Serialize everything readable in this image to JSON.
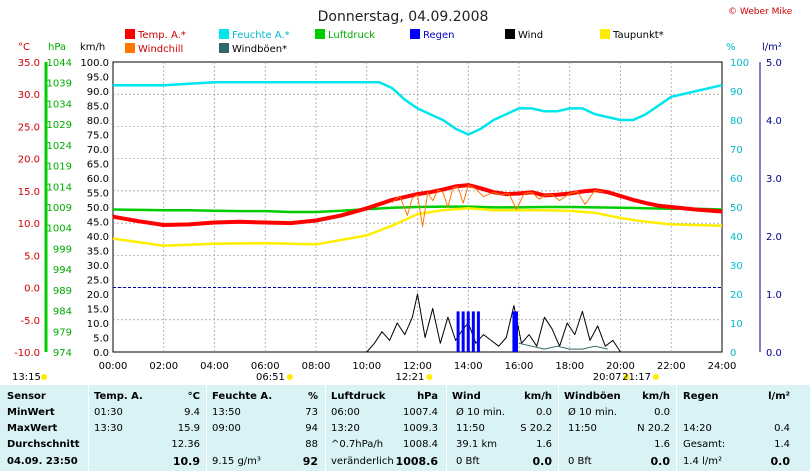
{
  "title": "Donnerstag, 04.09.2008",
  "credit": "© Weber Mike",
  "legend": [
    {
      "label": "Temp. A.*",
      "color": "#ff0000"
    },
    {
      "label": "Feuchte A.*",
      "color": "#00e5ee"
    },
    {
      "label": "Luftdruck",
      "color": "#00cc00"
    },
    {
      "label": "Regen",
      "color": "#0000ff"
    },
    {
      "label": "Wind",
      "color": "#000000"
    },
    {
      "label": "Taupunkt*",
      "color": "#ffee00"
    },
    {
      "label": "Windchill",
      "color": "#ff7700"
    },
    {
      "label": "Windböen*",
      "color": "#336666"
    }
  ],
  "axes_units": {
    "temp": "°C",
    "press": "hPa",
    "wind": "km/h",
    "hum": "%",
    "rain": "l/m²"
  },
  "chart_data": {
    "type": "line",
    "x_ticks": [
      "00:00",
      "02:00",
      "04:00",
      "06:00",
      "08:00",
      "10:00",
      "12:00",
      "14:00",
      "16:00",
      "18:00",
      "20:00",
      "22:00",
      "24:00"
    ],
    "temp_ticks": [
      "35.0",
      "30.0",
      "25.0",
      "20.0",
      "15.0",
      "10.0",
      "5.0",
      "0.0",
      "-5.0",
      "-10.0"
    ],
    "press_ticks": [
      "1044",
      "1039",
      "1034",
      "1029",
      "1024",
      "1019",
      "1014",
      "1009",
      "1004",
      "999",
      "994",
      "989",
      "984",
      "979",
      "974"
    ],
    "wind_ticks": [
      "100.0",
      "95.0",
      "90.0",
      "85.0",
      "80.0",
      "75.0",
      "70.0",
      "65.0",
      "60.0",
      "55.0",
      "50.0",
      "45.0",
      "40.0",
      "35.0",
      "30.0",
      "25.0",
      "20.0",
      "15.0",
      "10.0",
      "5.0",
      "0.0"
    ],
    "hum_ticks": [
      "100",
      "90",
      "80",
      "70",
      "60",
      "50",
      "40",
      "30",
      "20",
      "10",
      "0"
    ],
    "rain_ticks": [
      "5.0",
      "4.0",
      "3.0",
      "2.0",
      "1.0",
      "0.0"
    ],
    "temp_range": [
      -10,
      35
    ],
    "hum_range": [
      0,
      100
    ],
    "wind_range": [
      0,
      100
    ],
    "series": [
      {
        "name": "Temp. A.*",
        "color": "#ff0000",
        "x": [
          0,
          1,
          2,
          3,
          4,
          5,
          6,
          7,
          8,
          9,
          10,
          11,
          12,
          12.5,
          13,
          13.5,
          14,
          14.5,
          15,
          15.5,
          16,
          16.5,
          17,
          17.5,
          18,
          18.5,
          19,
          19.5,
          20,
          20.5,
          21,
          21.5,
          22,
          23,
          24
        ],
        "y": [
          11,
          10.3,
          9.7,
          9.8,
          10.1,
          10.2,
          10.1,
          10.0,
          10.4,
          11.2,
          12.3,
          13.6,
          14.5,
          14.8,
          15.2,
          15.7,
          15.9,
          15.4,
          14.8,
          14.5,
          14.6,
          14.8,
          14.3,
          14.4,
          14.6,
          14.9,
          15.1,
          14.8,
          14.2,
          13.6,
          13.1,
          12.7,
          12.5,
          12.1,
          11.8
        ]
      },
      {
        "name": "Feuchte A.*",
        "color": "#00e5ee",
        "x": [
          0,
          2,
          4,
          6,
          8,
          10,
          10.5,
          11,
          11.5,
          12,
          12.5,
          13,
          13.5,
          14,
          14.5,
          15,
          15.5,
          16,
          16.5,
          17,
          17.5,
          18,
          18.5,
          19,
          19.5,
          20,
          20.5,
          21,
          21.5,
          22,
          23,
          24
        ],
        "y": [
          92,
          92,
          93,
          93,
          93,
          93,
          93,
          91,
          87,
          84,
          82,
          80,
          77,
          75,
          77,
          80,
          82,
          84,
          84,
          83,
          83,
          84,
          84,
          82,
          81,
          80,
          80,
          82,
          85,
          88,
          90,
          92
        ]
      },
      {
        "name": "Luftdruck",
        "color": "#00cc00",
        "x": [
          0,
          1,
          2,
          3,
          4,
          5,
          6,
          7,
          8,
          9,
          10,
          11,
          12,
          13,
          14,
          15,
          16,
          17,
          18,
          19,
          20,
          21,
          22,
          23,
          24
        ],
        "y": [
          1008.4,
          1008.3,
          1008.2,
          1008.2,
          1008.1,
          1008.0,
          1008.0,
          1007.8,
          1007.8,
          1008.1,
          1008.5,
          1008.8,
          1009.0,
          1009.1,
          1009.1,
          1008.9,
          1008.9,
          1009.0,
          1009.0,
          1008.9,
          1008.8,
          1008.7,
          1008.6,
          1008.6,
          1008.4
        ]
      },
      {
        "name": "Taupunkt*",
        "color": "#ffee00",
        "x": [
          0,
          2,
          4,
          6,
          8,
          10,
          11,
          12,
          13,
          14,
          15,
          16,
          17,
          18,
          19,
          20,
          21,
          22,
          24
        ],
        "y": [
          7.6,
          6.5,
          6.8,
          6.9,
          6.7,
          8.1,
          9.6,
          11.4,
          12.0,
          12.3,
          12.0,
          12.0,
          12.0,
          11.9,
          11.6,
          10.8,
          10.2,
          9.8,
          9.6
        ]
      },
      {
        "name": "Windchill",
        "color": "#ff7700",
        "x": [
          11,
          11.3,
          11.6,
          11.8,
          12,
          12.2,
          12.4,
          12.6,
          12.8,
          13,
          13.2,
          13.4,
          13.6,
          13.8,
          14,
          14.3,
          14.6,
          15,
          15.3,
          15.6,
          15.9,
          16.2,
          16.5,
          16.8,
          17,
          17.3,
          17.6,
          18,
          18.3,
          18.6,
          19,
          19.3
        ],
        "y": [
          13.2,
          14.2,
          11.2,
          13.9,
          14.4,
          9.5,
          14.7,
          13.5,
          15.1,
          14.8,
          12.5,
          15.5,
          15.6,
          13.1,
          15.9,
          15.3,
          14.1,
          14.8,
          14.4,
          14.6,
          12.1,
          14.6,
          14.8,
          13.7,
          14.3,
          14.4,
          13.5,
          14.6,
          14.9,
          12.9,
          15.1,
          14.8
        ]
      },
      {
        "name": "Wind",
        "color": "#000000",
        "x": [
          10,
          10.3,
          10.6,
          10.9,
          11.2,
          11.5,
          11.8,
          12,
          12.3,
          12.6,
          12.9,
          13.2,
          13.5,
          13.8,
          14,
          14.3,
          14.6,
          14.9,
          15.2,
          15.5,
          15.8,
          16.1,
          16.4,
          16.7,
          17,
          17.3,
          17.6,
          17.9,
          18.2,
          18.5,
          18.8,
          19.1,
          19.4,
          19.7,
          20
        ],
        "y": [
          0,
          3,
          7,
          4,
          10,
          6,
          12,
          20,
          5,
          15,
          3,
          12,
          4,
          8,
          10,
          3,
          6,
          4,
          2,
          5,
          16,
          3,
          6,
          2,
          12,
          8,
          2,
          10,
          6,
          14,
          4,
          9,
          2,
          4,
          0
        ]
      },
      {
        "name": "Windböen*",
        "color": "#336666",
        "x": [
          16,
          16.5,
          17,
          17.5,
          18,
          18.5,
          19,
          19.5
        ],
        "y": [
          3,
          2,
          1,
          2,
          1,
          1,
          2,
          1
        ]
      }
    ],
    "rain_bars_x": [
      13.6,
      13.8,
      14.0,
      14.2,
      14.4,
      15.8,
      15.9
    ],
    "rain_bars_y": [
      0.7,
      0.7,
      0.7,
      0.7,
      0.7,
      0.7,
      0.7
    ],
    "markers": [
      {
        "label": "13:15",
        "x": 0
      },
      {
        "label": "06:51",
        "x": 6.85
      },
      {
        "label": "12:21",
        "x": 12.35
      },
      {
        "label": "20:07",
        "x": 20.12
      },
      {
        "label": "21:17",
        "x": 21.28
      }
    ]
  },
  "table": {
    "headers": {
      "sensor": "Sensor",
      "temp": "Temp. A.",
      "temp_u": "°C",
      "hum": "Feuchte A.",
      "hum_u": "%",
      "press": "Luftdruck",
      "press_u": "hPa",
      "wind": "Wind",
      "wind_u": "km/h",
      "gust": "Windböen",
      "gust_u": "km/h",
      "rain": "Regen",
      "rain_u": "l/m²"
    },
    "labels": [
      "MinWert",
      "MaxWert",
      "Durchschnitt",
      "04.09. 23:50"
    ],
    "temp": [
      [
        "01:30",
        "9.4"
      ],
      [
        "13:30",
        "15.9"
      ],
      [
        "",
        "12.36"
      ],
      [
        "",
        "10.9"
      ]
    ],
    "hum": [
      [
        "13:50",
        "73"
      ],
      [
        "09:00",
        "94"
      ],
      [
        "",
        "88"
      ],
      [
        "9.15 g/m³",
        "92"
      ]
    ],
    "press": [
      [
        "06:00",
        "1007.4"
      ],
      [
        "13:20",
        "1009.3"
      ],
      [
        "^0.7hPa/h",
        "1008.4"
      ],
      [
        "veränderlich",
        "1008.6"
      ]
    ],
    "wind": [
      [
        "Ø 10 min.",
        "0.0"
      ],
      [
        "11:50",
        "S 20.2"
      ],
      [
        "39.1 km",
        "1.6"
      ],
      [
        "0 Bft",
        "0.0"
      ]
    ],
    "gust": [
      [
        "Ø 10 min.",
        "0.0"
      ],
      [
        "11:50",
        "N 20.2"
      ],
      [
        "",
        "1.6"
      ],
      [
        "0 Bft",
        "0.0"
      ]
    ],
    "rain": [
      [
        "",
        ""
      ],
      [
        "14:20",
        "0.4"
      ],
      [
        "Gesamt:",
        "1.4"
      ],
      [
        "1.4 l/m²",
        "0.0"
      ]
    ]
  }
}
